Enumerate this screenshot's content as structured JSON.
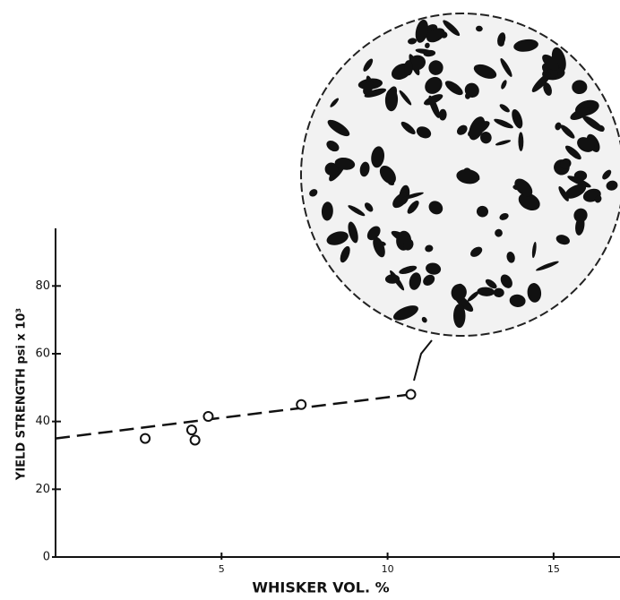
{
  "chart_data": {
    "type": "scatter",
    "x_label": "WHISKER VOL. %",
    "y_label": "YIELD STRENGTH psi x 10³",
    "x": [
      2.7,
      4.1,
      4.2,
      4.6,
      7.4,
      10.7
    ],
    "values": [
      35,
      37.5,
      34.5,
      41.5,
      45,
      48
    ],
    "trend": {
      "x": [
        0,
        10.7
      ],
      "values": [
        35,
        48
      ]
    },
    "color": "#111111",
    "xlim": [
      0,
      17
    ],
    "ylim": [
      0,
      97
    ],
    "xticks": [
      5,
      10,
      15
    ],
    "yticks": [
      0,
      20,
      40,
      60,
      80
    ]
  }
}
